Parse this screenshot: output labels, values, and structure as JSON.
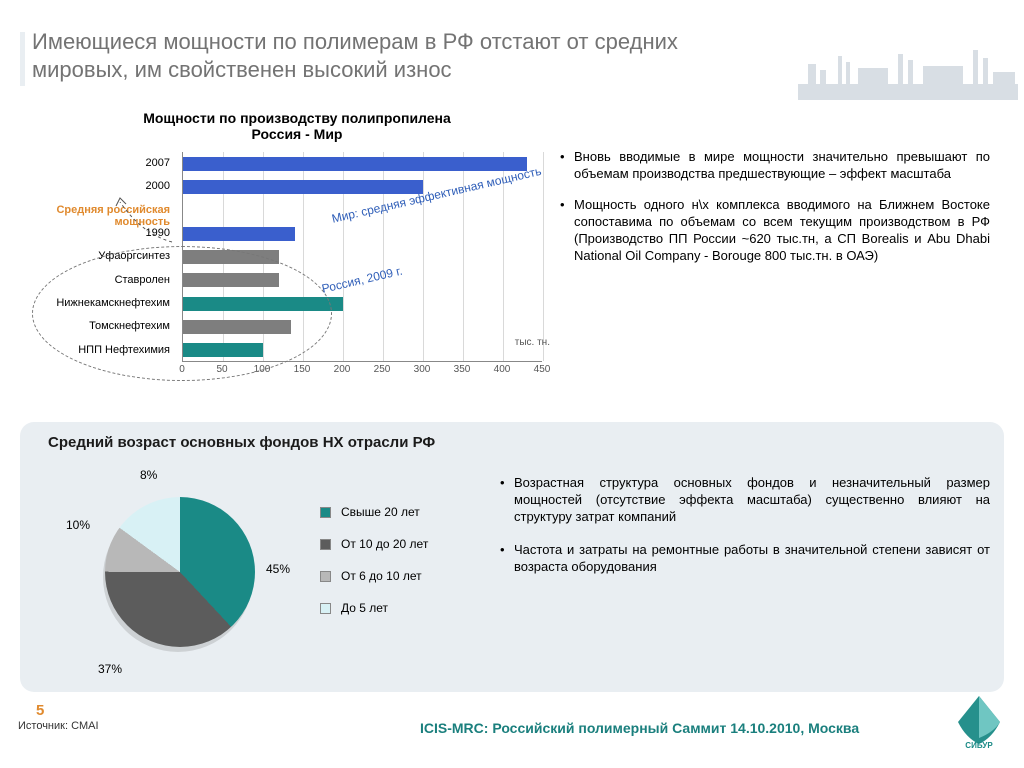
{
  "title": "Имеющиеся мощности по полимерам в РФ отстают от средних мировых, им свойственен высокий износ",
  "bar_chart": {
    "type": "bar-horizontal",
    "title": "Мощности по производству полипропилена\nРоссия - Мир",
    "x_unit": "тыс. тн.",
    "xlim": [
      0,
      450
    ],
    "xtick_step": 50,
    "ticks": [
      "0",
      "50",
      "100",
      "150",
      "200",
      "250",
      "300",
      "350",
      "400",
      "450"
    ],
    "bars": [
      {
        "label": "2007",
        "value": 430,
        "color": "#3a5fcd"
      },
      {
        "label": "2000",
        "value": 300,
        "color": "#3a5fcd"
      },
      {
        "label": "Средняя российская мощность",
        "value": 0,
        "label_color": "#e08a2e"
      },
      {
        "label": "1990",
        "value": 140,
        "color": "#3a5fcd"
      },
      {
        "label": "Уфаоргсинтез",
        "value": 120,
        "color": "#7e7e7e"
      },
      {
        "label": "Ставролен",
        "value": 120,
        "color": "#7e7e7e"
      },
      {
        "label": "Нижнекамскнефтехим",
        "value": 200,
        "color": "#1a8a86"
      },
      {
        "label": "Томскнефтехим",
        "value": 135,
        "color": "#7e7e7e"
      },
      {
        "label": "НПП Нефтехимия",
        "value": 100,
        "color": "#1a8a86"
      }
    ],
    "annot_world": "Мир: средняя эффективная мощность",
    "annot_russia": "Россия, 2009 г.",
    "annot_ru_capacity": "Средняя российская мощность"
  },
  "top_bullets": [
    "Вновь вводимые в мире мощности значительно превышают по объемам производства предшествующие – эффект масштаба",
    "Мощность одного н\\х комплекса вводимого на Ближнем Востоке сопоставима по объемам со всем текущим производством в РФ (Производство ПП России ~620 тыс.тн, а СП Borealis и Abu Dhabi National Oil Company - Borouge 800 тыс.тн. в ОАЭ)"
  ],
  "grey_box": {
    "title": "Средний возраст основных фондов НХ отрасли РФ",
    "pie": {
      "type": "pie",
      "slices": [
        {
          "label": "Свыше 20 лет",
          "value": 45,
          "color": "#1a8a86"
        },
        {
          "label": "От 10 до 20 лет",
          "value": 37,
          "color": "#5c5c5c"
        },
        {
          "label": "От 6 до 10 лет",
          "value": 10,
          "color": "#b8b8b8"
        },
        {
          "label": "До 5 лет",
          "value": 8,
          "color": "#d8f1f5"
        }
      ],
      "labels": {
        "p45": "45%",
        "p37": "37%",
        "p10": "10%",
        "p8": "8%"
      }
    },
    "bullets": [
      "Возрастная структура основных фондов и незначительный размер мощностей (отсутствие эффекта масштаба) существенно влияют на структуру затрат компаний",
      "Частота и затраты на ремонтные работы в значительной степени зависят от возраста оборудования"
    ]
  },
  "footer": {
    "page": "5",
    "source": "Источник: CMAI",
    "event": "ICIS-MRC: Российский полимерный Саммит 14.10.2010, Москва",
    "logo_text": "СИБУР"
  },
  "colors": {
    "accent_orange": "#e08a2e",
    "accent_teal": "#1a8a86",
    "grey_box_bg": "#e9eef2"
  }
}
